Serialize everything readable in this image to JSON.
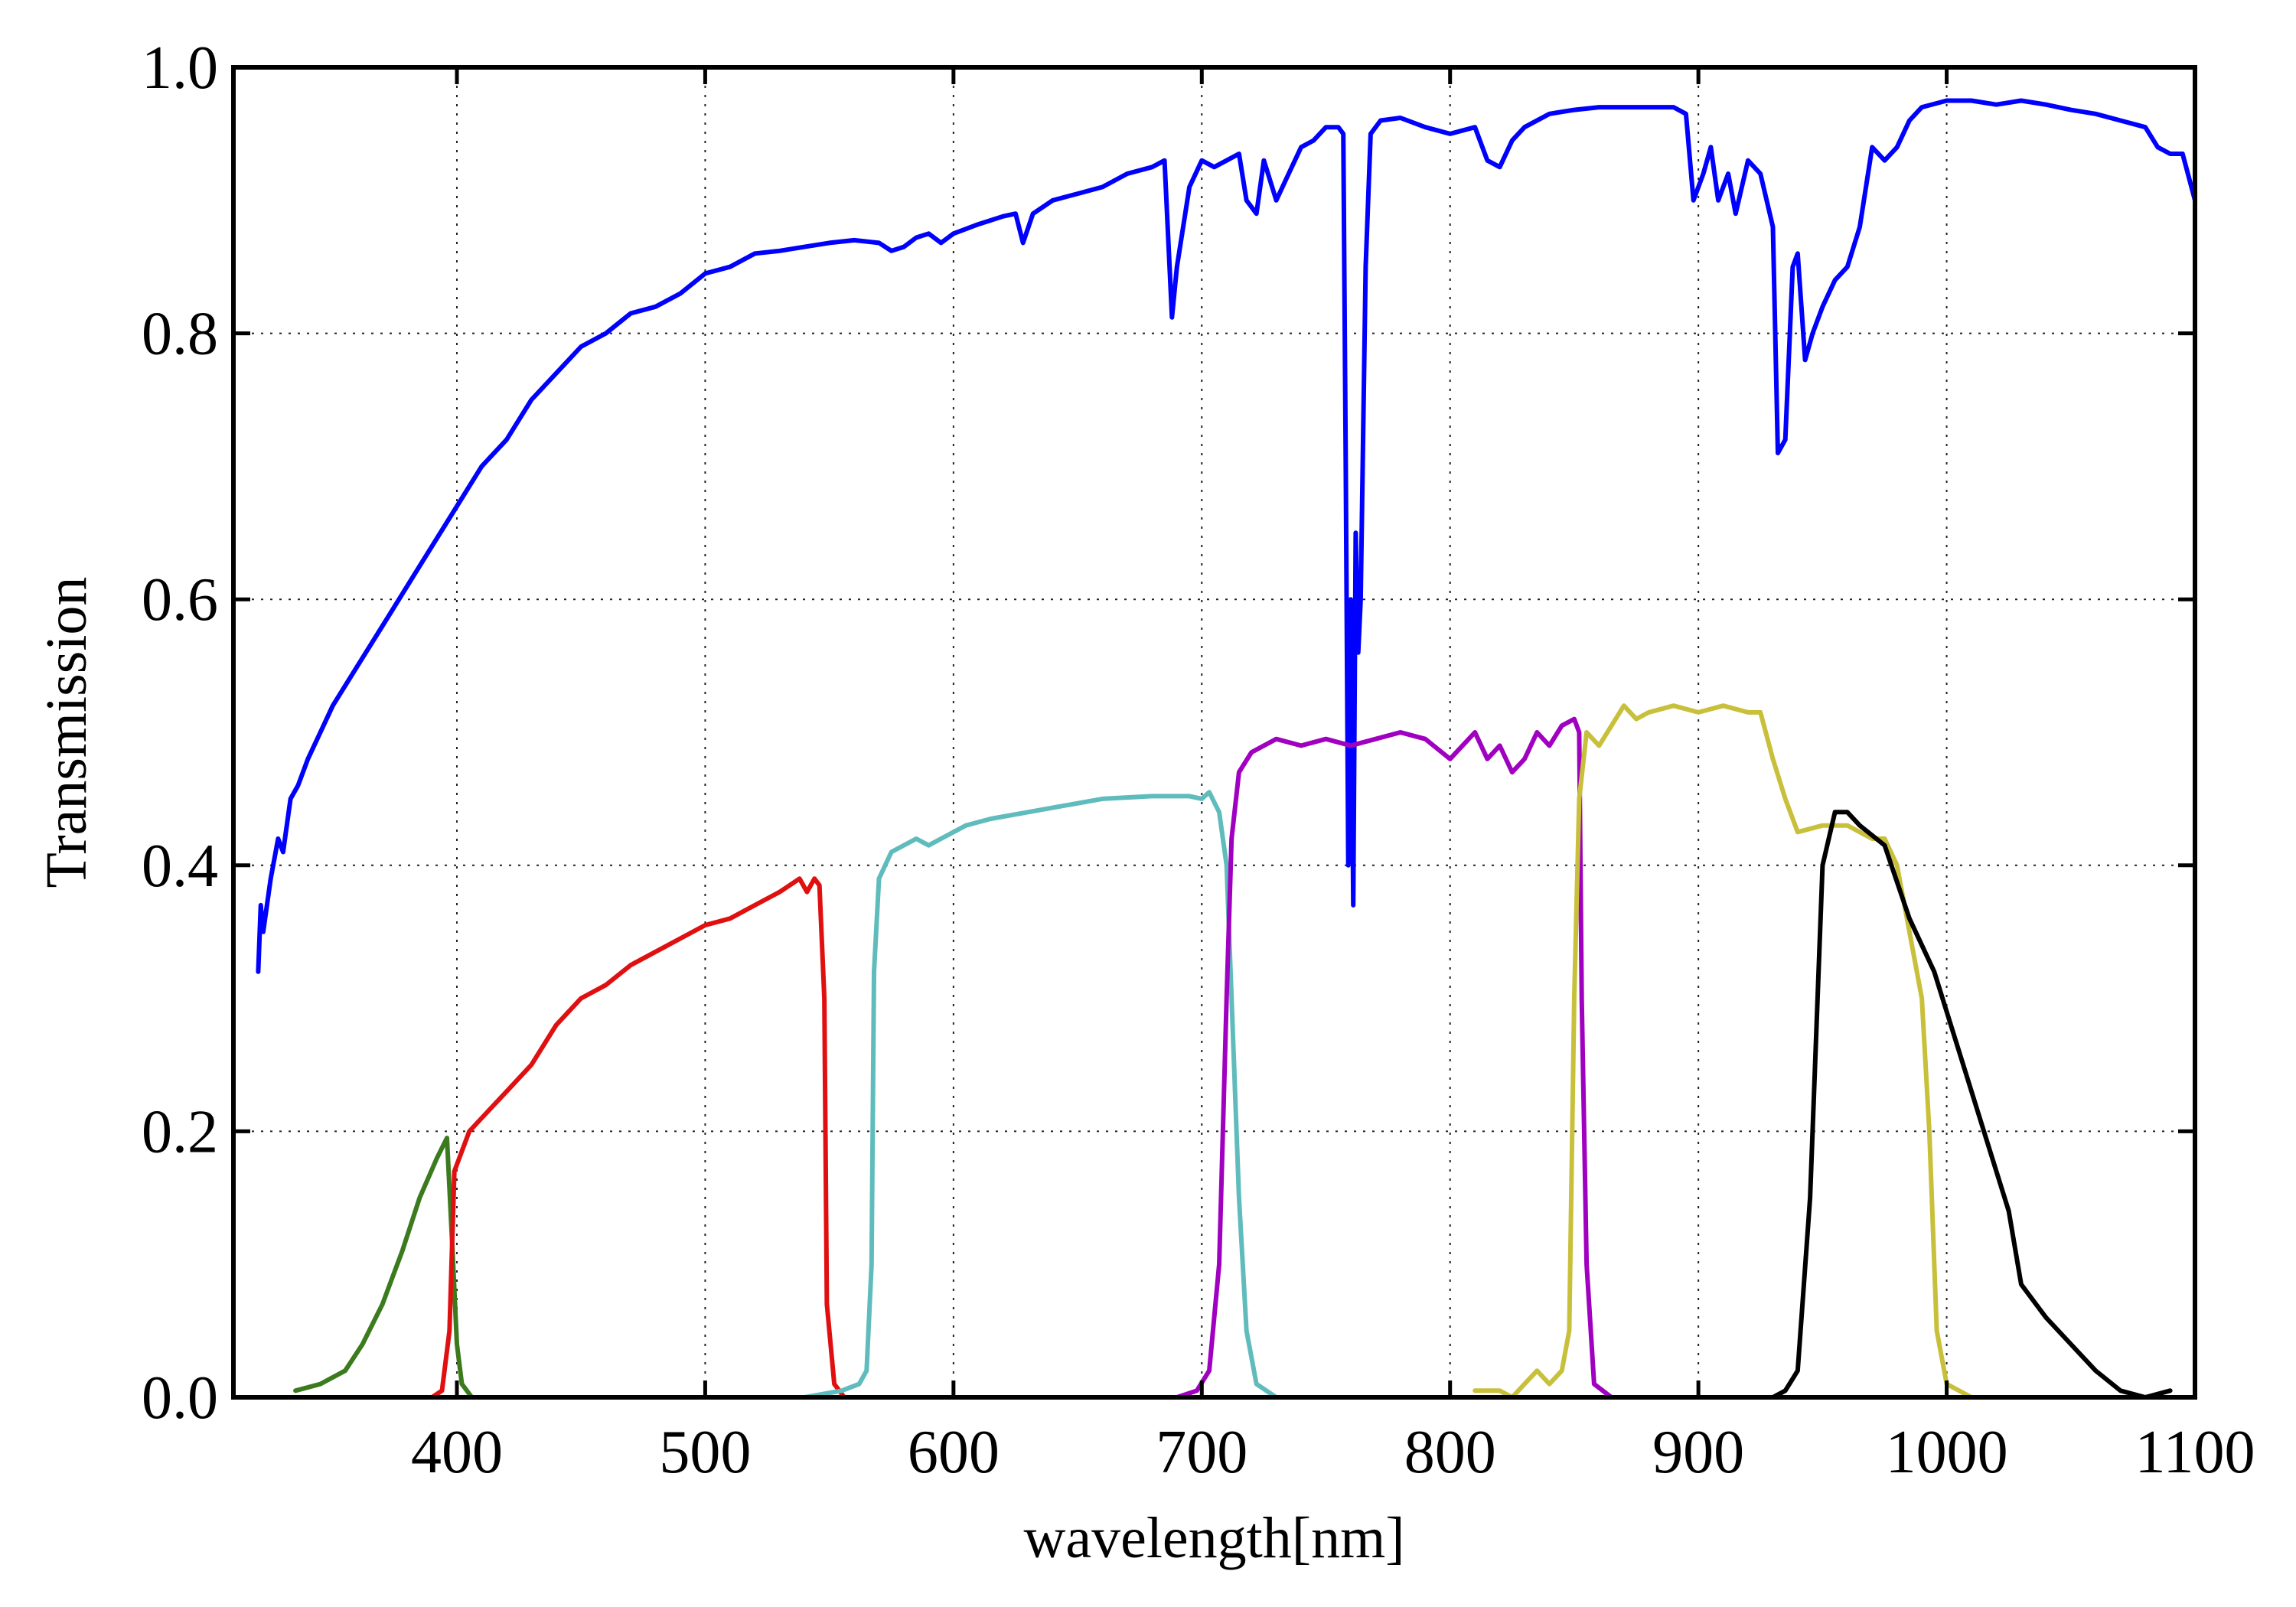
{
  "chart_data": {
    "type": "line",
    "title": "",
    "xlabel": "wavelength[nm]",
    "ylabel": "Transmission",
    "xlim": [
      310,
      1100
    ],
    "ylim": [
      0.0,
      1.0
    ],
    "x_ticks": [
      400,
      500,
      600,
      700,
      800,
      900,
      1000,
      1100
    ],
    "y_ticks": [
      "0.0",
      "0.2",
      "0.4",
      "0.6",
      "0.8",
      "1.0"
    ],
    "grid": true,
    "legend": "none",
    "series": [
      {
        "color": "#0000ff",
        "points": [
          [
            320,
            0.32
          ],
          [
            321,
            0.37
          ],
          [
            322,
            0.35
          ],
          [
            325,
            0.39
          ],
          [
            328,
            0.42
          ],
          [
            330,
            0.41
          ],
          [
            333,
            0.45
          ],
          [
            336,
            0.46
          ],
          [
            340,
            0.48
          ],
          [
            345,
            0.5
          ],
          [
            350,
            0.52
          ],
          [
            360,
            0.55
          ],
          [
            370,
            0.58
          ],
          [
            380,
            0.61
          ],
          [
            390,
            0.64
          ],
          [
            400,
            0.67
          ],
          [
            410,
            0.7
          ],
          [
            420,
            0.72
          ],
          [
            430,
            0.75
          ],
          [
            440,
            0.77
          ],
          [
            450,
            0.79
          ],
          [
            460,
            0.8
          ],
          [
            470,
            0.815
          ],
          [
            480,
            0.82
          ],
          [
            490,
            0.83
          ],
          [
            500,
            0.845
          ],
          [
            510,
            0.85
          ],
          [
            520,
            0.86
          ],
          [
            530,
            0.862
          ],
          [
            540,
            0.865
          ],
          [
            550,
            0.868
          ],
          [
            560,
            0.87
          ],
          [
            570,
            0.868
          ],
          [
            575,
            0.862
          ],
          [
            580,
            0.865
          ],
          [
            585,
            0.872
          ],
          [
            590,
            0.875
          ],
          [
            595,
            0.868
          ],
          [
            600,
            0.875
          ],
          [
            610,
            0.882
          ],
          [
            620,
            0.888
          ],
          [
            625,
            0.89
          ],
          [
            628,
            0.868
          ],
          [
            632,
            0.89
          ],
          [
            640,
            0.9
          ],
          [
            650,
            0.905
          ],
          [
            660,
            0.91
          ],
          [
            670,
            0.92
          ],
          [
            680,
            0.925
          ],
          [
            685,
            0.93
          ],
          [
            688,
            0.812
          ],
          [
            690,
            0.85
          ],
          [
            695,
            0.91
          ],
          [
            700,
            0.93
          ],
          [
            705,
            0.925
          ],
          [
            710,
            0.93
          ],
          [
            715,
            0.935
          ],
          [
            718,
            0.9
          ],
          [
            722,
            0.89
          ],
          [
            725,
            0.93
          ],
          [
            730,
            0.9
          ],
          [
            735,
            0.92
          ],
          [
            740,
            0.94
          ],
          [
            745,
            0.945
          ],
          [
            750,
            0.955
          ],
          [
            755,
            0.955
          ],
          [
            757,
            0.95
          ],
          [
            758,
            0.7
          ],
          [
            759,
            0.4
          ],
          [
            760,
            0.6
          ],
          [
            761,
            0.37
          ],
          [
            762,
            0.65
          ],
          [
            763,
            0.56
          ],
          [
            764,
            0.6
          ],
          [
            766,
            0.85
          ],
          [
            768,
            0.95
          ],
          [
            772,
            0.96
          ],
          [
            780,
            0.962
          ],
          [
            790,
            0.955
          ],
          [
            800,
            0.95
          ],
          [
            810,
            0.955
          ],
          [
            815,
            0.93
          ],
          [
            820,
            0.925
          ],
          [
            825,
            0.945
          ],
          [
            830,
            0.955
          ],
          [
            840,
            0.965
          ],
          [
            850,
            0.968
          ],
          [
            860,
            0.97
          ],
          [
            870,
            0.97
          ],
          [
            880,
            0.97
          ],
          [
            890,
            0.97
          ],
          [
            895,
            0.965
          ],
          [
            898,
            0.9
          ],
          [
            902,
            0.92
          ],
          [
            905,
            0.94
          ],
          [
            908,
            0.9
          ],
          [
            912,
            0.92
          ],
          [
            915,
            0.89
          ],
          [
            920,
            0.93
          ],
          [
            925,
            0.92
          ],
          [
            930,
            0.88
          ],
          [
            932,
            0.71
          ],
          [
            935,
            0.72
          ],
          [
            938,
            0.85
          ],
          [
            940,
            0.86
          ],
          [
            943,
            0.78
          ],
          [
            946,
            0.8
          ],
          [
            950,
            0.82
          ],
          [
            955,
            0.84
          ],
          [
            960,
            0.85
          ],
          [
            965,
            0.88
          ],
          [
            970,
            0.94
          ],
          [
            975,
            0.93
          ],
          [
            980,
            0.94
          ],
          [
            985,
            0.96
          ],
          [
            990,
            0.97
          ],
          [
            1000,
            0.975
          ],
          [
            1010,
            0.975
          ],
          [
            1020,
            0.972
          ],
          [
            1030,
            0.975
          ],
          [
            1040,
            0.972
          ],
          [
            1050,
            0.968
          ],
          [
            1060,
            0.965
          ],
          [
            1070,
            0.96
          ],
          [
            1080,
            0.955
          ],
          [
            1085,
            0.94
          ],
          [
            1090,
            0.935
          ],
          [
            1095,
            0.935
          ],
          [
            1100,
            0.9
          ]
        ]
      },
      {
        "color": "#3c7a1e",
        "points": [
          [
            335,
            0.005
          ],
          [
            345,
            0.01
          ],
          [
            355,
            0.02
          ],
          [
            362,
            0.04
          ],
          [
            370,
            0.07
          ],
          [
            378,
            0.11
          ],
          [
            385,
            0.15
          ],
          [
            392,
            0.18
          ],
          [
            396,
            0.195
          ],
          [
            398,
            0.12
          ],
          [
            400,
            0.04
          ],
          [
            402,
            0.01
          ],
          [
            406,
            0.0
          ]
        ]
      },
      {
        "color": "#e01010",
        "points": [
          [
            370,
            0.0
          ],
          [
            390,
            0.0
          ],
          [
            394,
            0.005
          ],
          [
            397,
            0.05
          ],
          [
            399,
            0.17
          ],
          [
            401,
            0.18
          ],
          [
            405,
            0.2
          ],
          [
            410,
            0.21
          ],
          [
            420,
            0.23
          ],
          [
            430,
            0.25
          ],
          [
            440,
            0.28
          ],
          [
            450,
            0.3
          ],
          [
            460,
            0.31
          ],
          [
            470,
            0.325
          ],
          [
            480,
            0.335
          ],
          [
            490,
            0.345
          ],
          [
            500,
            0.355
          ],
          [
            510,
            0.36
          ],
          [
            520,
            0.37
          ],
          [
            530,
            0.38
          ],
          [
            538,
            0.39
          ],
          [
            541,
            0.38
          ],
          [
            544,
            0.39
          ],
          [
            546,
            0.385
          ],
          [
            548,
            0.3
          ],
          [
            549,
            0.07
          ],
          [
            552,
            0.01
          ],
          [
            556,
            0.0
          ],
          [
            560,
            0.0
          ]
        ]
      },
      {
        "color": "#60bcbc",
        "points": [
          [
            540,
            0.0
          ],
          [
            555,
            0.005
          ],
          [
            562,
            0.01
          ],
          [
            565,
            0.02
          ],
          [
            567,
            0.1
          ],
          [
            568,
            0.32
          ],
          [
            570,
            0.39
          ],
          [
            575,
            0.41
          ],
          [
            585,
            0.42
          ],
          [
            590,
            0.415
          ],
          [
            595,
            0.42
          ],
          [
            605,
            0.43
          ],
          [
            615,
            0.435
          ],
          [
            630,
            0.44
          ],
          [
            645,
            0.445
          ],
          [
            660,
            0.45
          ],
          [
            680,
            0.452
          ],
          [
            695,
            0.452
          ],
          [
            700,
            0.45
          ],
          [
            703,
            0.455
          ],
          [
            707,
            0.44
          ],
          [
            710,
            0.4
          ],
          [
            712,
            0.3
          ],
          [
            715,
            0.15
          ],
          [
            718,
            0.05
          ],
          [
            722,
            0.01
          ],
          [
            730,
            0.0
          ]
        ]
      },
      {
        "color": "#a000c0",
        "points": [
          [
            670,
            0.0
          ],
          [
            690,
            0.0
          ],
          [
            698,
            0.005
          ],
          [
            703,
            0.02
          ],
          [
            707,
            0.1
          ],
          [
            710,
            0.3
          ],
          [
            712,
            0.42
          ],
          [
            715,
            0.47
          ],
          [
            720,
            0.485
          ],
          [
            730,
            0.495
          ],
          [
            740,
            0.49
          ],
          [
            750,
            0.495
          ],
          [
            760,
            0.49
          ],
          [
            770,
            0.495
          ],
          [
            780,
            0.5
          ],
          [
            790,
            0.495
          ],
          [
            800,
            0.48
          ],
          [
            805,
            0.49
          ],
          [
            810,
            0.5
          ],
          [
            815,
            0.48
          ],
          [
            820,
            0.49
          ],
          [
            825,
            0.47
          ],
          [
            830,
            0.48
          ],
          [
            835,
            0.5
          ],
          [
            840,
            0.49
          ],
          [
            845,
            0.505
          ],
          [
            850,
            0.51
          ],
          [
            852,
            0.5
          ],
          [
            853,
            0.3
          ],
          [
            855,
            0.1
          ],
          [
            858,
            0.01
          ],
          [
            865,
            0.0
          ]
        ]
      },
      {
        "color": "#c8c03a",
        "points": [
          [
            810,
            0.005
          ],
          [
            820,
            0.005
          ],
          [
            825,
            0.0
          ],
          [
            830,
            0.01
          ],
          [
            835,
            0.02
          ],
          [
            840,
            0.01
          ],
          [
            845,
            0.02
          ],
          [
            848,
            0.05
          ],
          [
            850,
            0.3
          ],
          [
            852,
            0.45
          ],
          [
            855,
            0.5
          ],
          [
            860,
            0.49
          ],
          [
            865,
            0.505
          ],
          [
            870,
            0.52
          ],
          [
            875,
            0.51
          ],
          [
            880,
            0.515
          ],
          [
            890,
            0.52
          ],
          [
            900,
            0.515
          ],
          [
            910,
            0.52
          ],
          [
            920,
            0.515
          ],
          [
            925,
            0.515
          ],
          [
            930,
            0.48
          ],
          [
            935,
            0.45
          ],
          [
            940,
            0.425
          ],
          [
            950,
            0.43
          ],
          [
            960,
            0.43
          ],
          [
            970,
            0.42
          ],
          [
            975,
            0.42
          ],
          [
            980,
            0.4
          ],
          [
            985,
            0.35
          ],
          [
            990,
            0.3
          ],
          [
            993,
            0.2
          ],
          [
            996,
            0.05
          ],
          [
            1000,
            0.01
          ],
          [
            1010,
            0.0
          ],
          [
            1025,
            0.0
          ]
        ]
      },
      {
        "color": "#000000",
        "points": [
          [
            930,
            0.0
          ],
          [
            935,
            0.005
          ],
          [
            940,
            0.02
          ],
          [
            945,
            0.15
          ],
          [
            950,
            0.4
          ],
          [
            955,
            0.44
          ],
          [
            960,
            0.44
          ],
          [
            965,
            0.43
          ],
          [
            975,
            0.415
          ],
          [
            985,
            0.36
          ],
          [
            995,
            0.32
          ],
          [
            1005,
            0.26
          ],
          [
            1015,
            0.2
          ],
          [
            1025,
            0.14
          ],
          [
            1030,
            0.085
          ],
          [
            1040,
            0.06
          ],
          [
            1050,
            0.04
          ],
          [
            1060,
            0.02
          ],
          [
            1070,
            0.005
          ],
          [
            1080,
            0.0
          ],
          [
            1090,
            0.005
          ]
        ]
      }
    ]
  }
}
